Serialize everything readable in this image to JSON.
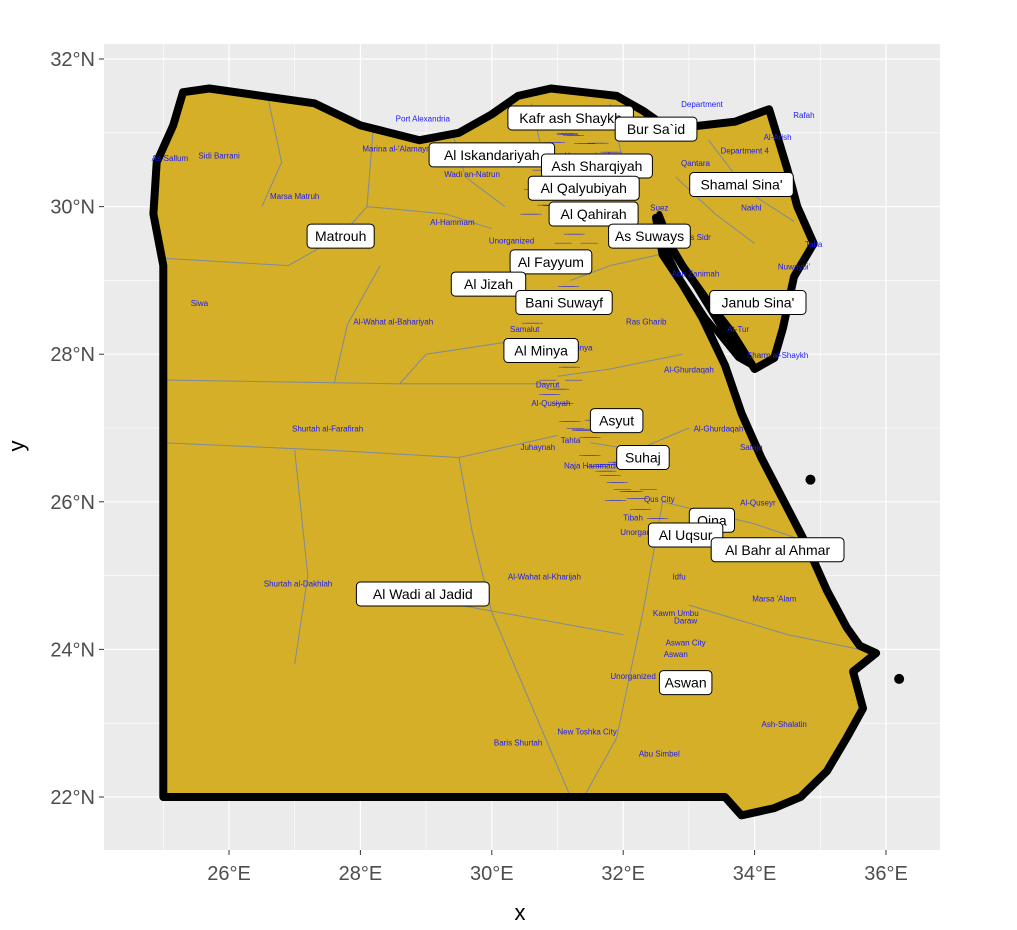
{
  "axes": {
    "xlabel": "x",
    "ylabel": "y",
    "x_ticks": [
      "26°E",
      "28°E",
      "30°E",
      "32°E",
      "34°E",
      "36°E"
    ],
    "y_ticks": [
      "32°N",
      "30°N",
      "28°N",
      "26°N",
      "24°N",
      "22°N"
    ],
    "xlim": [
      24.2,
      36.8
    ],
    "ylim": [
      21.3,
      32.3
    ]
  },
  "colors": {
    "panel": "#ebebeb",
    "grid": "#ffffff",
    "land": "#d4af27",
    "border": "#000000",
    "district_line": "#7f8a9a",
    "small_text": "#1a1aff"
  },
  "chart_data": {
    "type": "map",
    "governorates": [
      {
        "name": "Kafr ash Shaykh",
        "lon": 31.2,
        "lat": 31.2
      },
      {
        "name": "Bur Sa`id",
        "lon": 32.5,
        "lat": 31.05
      },
      {
        "name": "Al Iskandariyah",
        "lon": 30.0,
        "lat": 30.7
      },
      {
        "name": "Ash Sharqiyah",
        "lon": 31.6,
        "lat": 30.55
      },
      {
        "name": "Shamal Sina'",
        "lon": 33.8,
        "lat": 30.3
      },
      {
        "name": "Al Qalyubiyah",
        "lon": 31.4,
        "lat": 30.25
      },
      {
        "name": "Al Qahirah",
        "lon": 31.55,
        "lat": 29.9
      },
      {
        "name": "As Suways",
        "lon": 32.4,
        "lat": 29.6
      },
      {
        "name": "Matrouh",
        "lon": 27.7,
        "lat": 29.6
      },
      {
        "name": "Al Fayyum",
        "lon": 30.9,
        "lat": 29.25
      },
      {
        "name": "Al Jizah",
        "lon": 29.95,
        "lat": 28.95
      },
      {
        "name": "Bani Suwayf",
        "lon": 31.1,
        "lat": 28.7
      },
      {
        "name": "Janub Sina'",
        "lon": 34.05,
        "lat": 28.7
      },
      {
        "name": "Al Minya",
        "lon": 30.75,
        "lat": 28.05
      },
      {
        "name": "Asyut",
        "lon": 31.9,
        "lat": 27.1
      },
      {
        "name": "Suhaj",
        "lon": 32.3,
        "lat": 26.6
      },
      {
        "name": "Qina",
        "lon": 33.35,
        "lat": 25.75
      },
      {
        "name": "Al Uqsur",
        "lon": 32.95,
        "lat": 25.55
      },
      {
        "name": "Al Bahr al Ahmar",
        "lon": 34.35,
        "lat": 25.35
      },
      {
        "name": "Al Wadi al Jadid",
        "lon": 28.95,
        "lat": 24.75
      },
      {
        "name": "Aswan",
        "lon": 32.95,
        "lat": 23.55
      }
    ],
    "district_labels": [
      {
        "name": "Port Alexandria",
        "lon": 28.95,
        "lat": 31.15
      },
      {
        "name": "Marina al-'Alamayn",
        "lon": 28.55,
        "lat": 30.75
      },
      {
        "name": "Sidi Barrani",
        "lon": 25.85,
        "lat": 30.65
      },
      {
        "name": "As-Sallum",
        "lon": 25.1,
        "lat": 30.62
      },
      {
        "name": "Marsa Matruh",
        "lon": 27.0,
        "lat": 30.1
      },
      {
        "name": "Al-Hammam",
        "lon": 29.4,
        "lat": 29.75
      },
      {
        "name": "Siwa",
        "lon": 25.55,
        "lat": 28.65
      },
      {
        "name": "Al-Wahat al-Bahariyah",
        "lon": 28.5,
        "lat": 28.4
      },
      {
        "name": "Shurtah al-Farafirah",
        "lon": 27.5,
        "lat": 26.95
      },
      {
        "name": "Shurtah al-Dakhlah",
        "lon": 27.05,
        "lat": 24.85
      },
      {
        "name": "Al-Wahat al-Kharijah",
        "lon": 30.8,
        "lat": 24.95
      },
      {
        "name": "Baris Shurtah",
        "lon": 30.4,
        "lat": 22.7
      },
      {
        "name": "New Toshka City",
        "lon": 31.45,
        "lat": 22.85
      },
      {
        "name": "Abu Simbel",
        "lon": 32.55,
        "lat": 22.55
      },
      {
        "name": "Ash-Shalatin",
        "lon": 34.45,
        "lat": 22.95
      },
      {
        "name": "Marsa 'Alam",
        "lon": 34.3,
        "lat": 24.65
      },
      {
        "name": "Idfu",
        "lon": 32.85,
        "lat": 24.95
      },
      {
        "name": "Kawm Umbu",
        "lon": 32.8,
        "lat": 24.45
      },
      {
        "name": "Daraw",
        "lon": 32.95,
        "lat": 24.35
      },
      {
        "name": "Aswan City",
        "lon": 32.95,
        "lat": 24.05
      },
      {
        "name": "Aswan",
        "lon": 32.8,
        "lat": 23.9
      },
      {
        "name": "Al-Ghurdaqah",
        "lon": 33.45,
        "lat": 26.95
      },
      {
        "name": "Safaja",
        "lon": 33.95,
        "lat": 26.7
      },
      {
        "name": "Al-Quseyr",
        "lon": 34.05,
        "lat": 25.95
      },
      {
        "name": "Ras Gharib",
        "lon": 32.35,
        "lat": 28.4
      },
      {
        "name": "Al-Ghurdaqah 2",
        "lon": 33.0,
        "lat": 27.75
      },
      {
        "name": "Abu Zanimah",
        "lon": 33.1,
        "lat": 29.05
      },
      {
        "name": "Sharm al-Shaykh",
        "lon": 34.35,
        "lat": 27.95
      },
      {
        "name": "At-Tur",
        "lon": 33.75,
        "lat": 28.3
      },
      {
        "name": "Nuwaybi'",
        "lon": 34.6,
        "lat": 29.15
      },
      {
        "name": "Taba",
        "lon": 34.9,
        "lat": 29.45
      },
      {
        "name": "Nakhl",
        "lon": 33.95,
        "lat": 29.95
      },
      {
        "name": "Al-Arish",
        "lon": 34.35,
        "lat": 30.9
      },
      {
        "name": "Rafah",
        "lon": 34.75,
        "lat": 31.2
      },
      {
        "name": "Ras Sidr",
        "lon": 33.1,
        "lat": 29.55
      },
      {
        "name": "Suez",
        "lon": 32.55,
        "lat": 29.95
      },
      {
        "name": "Al Minya",
        "lon": 31.3,
        "lat": 28.05
      },
      {
        "name": "Maghaghah",
        "lon": 30.7,
        "lat": 28.55
      },
      {
        "name": "Samalut",
        "lon": 30.5,
        "lat": 28.3
      },
      {
        "name": "Abu Qurqas",
        "lon": 30.55,
        "lat": 27.9
      },
      {
        "name": "Dayrut",
        "lon": 30.85,
        "lat": 27.55
      },
      {
        "name": "Al-Qusiyah",
        "lon": 30.9,
        "lat": 27.3
      },
      {
        "name": "Juhaynah",
        "lon": 30.7,
        "lat": 26.7
      },
      {
        "name": "Tahta",
        "lon": 31.2,
        "lat": 26.8
      },
      {
        "name": "Naja Hammadi",
        "lon": 31.5,
        "lat": 26.45
      },
      {
        "name": "Qus City",
        "lon": 32.55,
        "lat": 26.0
      },
      {
        "name": "Tibah",
        "lon": 32.15,
        "lat": 25.75
      },
      {
        "name": "Unorganized",
        "lon": 31.45,
        "lat": 30.65
      },
      {
        "name": "Unorganized 2",
        "lon": 30.3,
        "lat": 29.5
      },
      {
        "name": "Unorganized 3",
        "lon": 30.0,
        "lat": 28.9
      },
      {
        "name": "Unorganized 4",
        "lon": 32.15,
        "lat": 23.6
      },
      {
        "name": "Unorganized 5",
        "lon": 32.3,
        "lat": 25.55
      },
      {
        "name": "Wadi an-Natrun",
        "lon": 29.7,
        "lat": 30.4
      },
      {
        "name": "Department 4",
        "lon": 33.85,
        "lat": 30.72
      },
      {
        "name": "Department",
        "lon": 33.2,
        "lat": 31.35
      },
      {
        "name": "Qantara",
        "lon": 33.1,
        "lat": 30.55
      }
    ],
    "islands": [
      {
        "lon": 34.85,
        "lat": 26.3
      },
      {
        "lon": 36.2,
        "lat": 23.6
      }
    ]
  },
  "label_text": {
    "small": [
      {
        "t": "Port Alexandria",
        "lon": 28.95,
        "lat": 31.15
      },
      {
        "t": "Marina al-'Alamayn",
        "lon": 28.55,
        "lat": 30.75
      },
      {
        "t": "Sidi Barrani",
        "lon": 25.85,
        "lat": 30.65
      },
      {
        "t": "As-Sallum",
        "lon": 25.1,
        "lat": 30.62
      },
      {
        "t": "Marsa Matruh",
        "lon": 27.0,
        "lat": 30.1
      },
      {
        "t": "Al-Hammam",
        "lon": 29.4,
        "lat": 29.75
      },
      {
        "t": "Siwa",
        "lon": 25.55,
        "lat": 28.65
      },
      {
        "t": "Al-Wahat al-Bahariyah",
        "lon": 28.5,
        "lat": 28.4
      },
      {
        "t": "Shurtah al-Farafirah",
        "lon": 27.5,
        "lat": 26.95
      },
      {
        "t": "Shurtah al-Dakhlah",
        "lon": 27.05,
        "lat": 24.85
      },
      {
        "t": "Al-Wahat al-Kharijah",
        "lon": 30.8,
        "lat": 24.95
      },
      {
        "t": "Baris Shurtah",
        "lon": 30.4,
        "lat": 22.7
      },
      {
        "t": "New Toshka City",
        "lon": 31.45,
        "lat": 22.85
      },
      {
        "t": "Abu Simbel",
        "lon": 32.55,
        "lat": 22.55
      },
      {
        "t": "Ash-Shalatin",
        "lon": 34.45,
        "lat": 22.95
      },
      {
        "t": "Marsa 'Alam",
        "lon": 34.3,
        "lat": 24.65
      },
      {
        "t": "Idfu",
        "lon": 32.85,
        "lat": 24.95
      },
      {
        "t": "Kawm Umbu",
        "lon": 32.8,
        "lat": 24.45
      },
      {
        "t": "Daraw",
        "lon": 32.95,
        "lat": 24.35
      },
      {
        "t": "Aswan City",
        "lon": 32.95,
        "lat": 24.05
      },
      {
        "t": "Aswan",
        "lon": 32.8,
        "lat": 23.9
      },
      {
        "t": "Al-Ghurdaqah",
        "lon": 33.45,
        "lat": 26.95
      },
      {
        "t": "Safaja",
        "lon": 33.95,
        "lat": 26.7
      },
      {
        "t": "Al-Quseyr",
        "lon": 34.05,
        "lat": 25.95
      },
      {
        "t": "Ras Gharib",
        "lon": 32.35,
        "lat": 28.4
      },
      {
        "t": "Al-Ghurdaqah",
        "lon": 33.0,
        "lat": 27.75
      },
      {
        "t": "Abu Zanimah",
        "lon": 33.1,
        "lat": 29.05
      },
      {
        "t": "Sharm al-Shaykh",
        "lon": 34.35,
        "lat": 27.95
      },
      {
        "t": "At-Tur",
        "lon": 33.75,
        "lat": 28.3
      },
      {
        "t": "Nuwaybi'",
        "lon": 34.6,
        "lat": 29.15
      },
      {
        "t": "Taba",
        "lon": 34.9,
        "lat": 29.45
      },
      {
        "t": "Nakhl",
        "lon": 33.95,
        "lat": 29.95
      },
      {
        "t": "Al-Arish",
        "lon": 34.35,
        "lat": 30.9
      },
      {
        "t": "Rafah",
        "lon": 34.75,
        "lat": 31.2
      },
      {
        "t": "Ras Sidr",
        "lon": 33.1,
        "lat": 29.55
      },
      {
        "t": "Suez",
        "lon": 32.55,
        "lat": 29.95
      },
      {
        "t": "Al Minya",
        "lon": 31.3,
        "lat": 28.05
      },
      {
        "t": "Maghaghah",
        "lon": 30.7,
        "lat": 28.55
      },
      {
        "t": "Samalut",
        "lon": 30.5,
        "lat": 28.3
      },
      {
        "t": "Abu Qurqas",
        "lon": 30.55,
        "lat": 27.9
      },
      {
        "t": "Dayrut",
        "lon": 30.85,
        "lat": 27.55
      },
      {
        "t": "Al-Qusiyah",
        "lon": 30.9,
        "lat": 27.3
      },
      {
        "t": "Juhaynah",
        "lon": 30.7,
        "lat": 26.7
      },
      {
        "t": "Tahta",
        "lon": 31.2,
        "lat": 26.8
      },
      {
        "t": "Naja Hammadi",
        "lon": 31.5,
        "lat": 26.45
      },
      {
        "t": "Qus City",
        "lon": 32.55,
        "lat": 26.0
      },
      {
        "t": "Tibah",
        "lon": 32.15,
        "lat": 25.75
      },
      {
        "t": "Unorganized",
        "lon": 31.45,
        "lat": 30.65
      },
      {
        "t": "Unorganized",
        "lon": 30.3,
        "lat": 29.5
      },
      {
        "t": "Unorganized",
        "lon": 30.0,
        "lat": 28.9
      },
      {
        "t": "Unorganized",
        "lon": 32.15,
        "lat": 23.6
      },
      {
        "t": "Unorganized",
        "lon": 32.3,
        "lat": 25.55
      },
      {
        "t": "Wadi an-Natrun",
        "lon": 29.7,
        "lat": 30.4
      },
      {
        "t": "Department 4",
        "lon": 33.85,
        "lat": 30.72
      },
      {
        "t": "Department",
        "lon": 33.2,
        "lat": 31.35
      },
      {
        "t": "Qantara",
        "lon": 33.1,
        "lat": 30.55
      }
    ]
  }
}
